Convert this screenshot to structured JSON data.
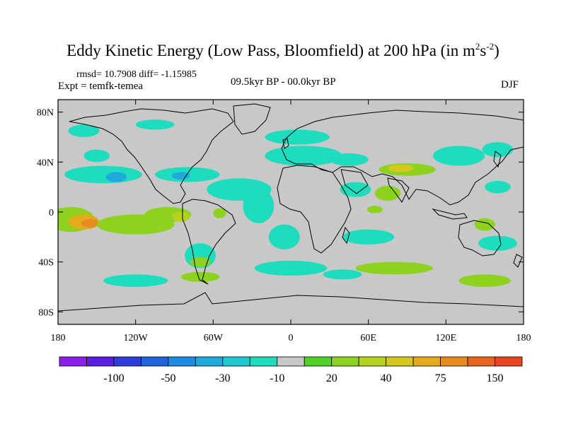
{
  "title": {
    "main": "Eddy Kinetic Energy (Low Pass, Bloomfield) at 200 hPa (in m",
    "sup1": "2",
    "mid": "s",
    "sup2": "-2",
    "end": ")"
  },
  "stats": "rmsd= 10.7908 diff= -1.15985",
  "experiment": "Expt = temfk-temea",
  "period": "09.5kyr BP - 00.0kyr BP",
  "season": "DJF",
  "map": {
    "lon_range": [
      -180,
      180
    ],
    "lat_range": [
      -90,
      90
    ],
    "lat_ticks": [
      {
        "lat": 80,
        "label": "80N"
      },
      {
        "lat": 40,
        "label": "40N"
      },
      {
        "lat": 0,
        "label": "0"
      },
      {
        "lat": -40,
        "label": "40S"
      },
      {
        "lat": -80,
        "label": "80S"
      }
    ],
    "lon_ticks": [
      {
        "lon": -180,
        "label": "180"
      },
      {
        "lon": -120,
        "label": "120W"
      },
      {
        "lon": -60,
        "label": "60W"
      },
      {
        "lon": 0,
        "label": "0"
      },
      {
        "lon": 60,
        "label": "60E"
      },
      {
        "lon": 120,
        "label": "120E"
      },
      {
        "lon": 180,
        "label": "180"
      }
    ],
    "background_color": "#c8c8c8"
  },
  "colorbar": {
    "colors": [
      "#8c1eea",
      "#5a1ee0",
      "#2e3cdc",
      "#1e64dc",
      "#1e8ce6",
      "#1eaadc",
      "#1ec8d2",
      "#1edcbe",
      "#c8c8c8",
      "#50d228",
      "#8cd21e",
      "#b4d21e",
      "#d2c81e",
      "#e6aa1e",
      "#e68c1e",
      "#e6641e",
      "#e6461e"
    ],
    "labels": [
      {
        "after": 2,
        "text": "-100"
      },
      {
        "after": 4,
        "text": "-50"
      },
      {
        "after": 6,
        "text": "-30"
      },
      {
        "after": 8,
        "text": "-10"
      },
      {
        "after": 10,
        "text": "20"
      },
      {
        "after": 12,
        "text": "40"
      },
      {
        "after": 14,
        "text": "75"
      },
      {
        "after": 16,
        "text": "150"
      }
    ]
  },
  "anomalies": [
    {
      "lon": -170,
      "lat": -6,
      "rx": 18,
      "ry": 10,
      "level": 10
    },
    {
      "lon": -160,
      "lat": -8,
      "rx": 12,
      "ry": 6,
      "level": 13
    },
    {
      "lon": -155,
      "lat": -9,
      "rx": 7,
      "ry": 3.5,
      "level": 14
    },
    {
      "lon": -120,
      "lat": -10,
      "rx": 30,
      "ry": 8,
      "level": 10
    },
    {
      "lon": -95,
      "lat": -2,
      "rx": 18,
      "ry": 6,
      "level": 10
    },
    {
      "lon": -85,
      "lat": -4,
      "rx": 7,
      "ry": 4,
      "level": 11
    },
    {
      "lon": -55,
      "lat": -1,
      "rx": 5,
      "ry": 4,
      "level": 10
    },
    {
      "lon": -145,
      "lat": 30,
      "rx": 30,
      "ry": 7,
      "level": 7
    },
    {
      "lon": -135,
      "lat": 28,
      "rx": 8,
      "ry": 4,
      "level": 5
    },
    {
      "lon": -80,
      "lat": 30,
      "rx": 25,
      "ry": 6,
      "level": 7
    },
    {
      "lon": -85,
      "lat": 29,
      "rx": 7,
      "ry": 3,
      "level": 5
    },
    {
      "lon": -40,
      "lat": 18,
      "rx": 25,
      "ry": 9,
      "level": 7
    },
    {
      "lon": -25,
      "lat": 5,
      "rx": 12,
      "ry": 14,
      "level": 7
    },
    {
      "lon": -5,
      "lat": -20,
      "rx": 12,
      "ry": 10,
      "level": 7
    },
    {
      "lon": 0,
      "lat": -45,
      "rx": 28,
      "ry": 6,
      "level": 7
    },
    {
      "lon": -160,
      "lat": 65,
      "rx": 12,
      "ry": 5,
      "level": 7
    },
    {
      "lon": -150,
      "lat": 45,
      "rx": 10,
      "ry": 5,
      "level": 7
    },
    {
      "lon": -105,
      "lat": 70,
      "rx": 15,
      "ry": 4,
      "level": 7
    },
    {
      "lon": 10,
      "lat": 45,
      "rx": 30,
      "ry": 8,
      "level": 7
    },
    {
      "lon": 5,
      "lat": 60,
      "rx": 25,
      "ry": 6,
      "level": 7
    },
    {
      "lon": 45,
      "lat": 42,
      "rx": 15,
      "ry": 5,
      "level": 7
    },
    {
      "lon": 50,
      "lat": 18,
      "rx": 12,
      "ry": 6,
      "level": 7
    },
    {
      "lon": 90,
      "lat": 34,
      "rx": 22,
      "ry": 5,
      "level": 10
    },
    {
      "lon": 85,
      "lat": 35,
      "rx": 10,
      "ry": 3,
      "level": 12
    },
    {
      "lon": 75,
      "lat": 15,
      "rx": 10,
      "ry": 6,
      "level": 10
    },
    {
      "lon": 65,
      "lat": 2,
      "rx": 6,
      "ry": 3,
      "level": 10
    },
    {
      "lon": 60,
      "lat": -20,
      "rx": 20,
      "ry": 6,
      "level": 7
    },
    {
      "lon": 130,
      "lat": 45,
      "rx": 20,
      "ry": 8,
      "level": 7
    },
    {
      "lon": 160,
      "lat": 50,
      "rx": 12,
      "ry": 6,
      "level": 7
    },
    {
      "lon": 160,
      "lat": 20,
      "rx": 10,
      "ry": 5,
      "level": 7
    },
    {
      "lon": 160,
      "lat": -25,
      "rx": 15,
      "ry": 6,
      "level": 7
    },
    {
      "lon": 150,
      "lat": -10,
      "rx": 8,
      "ry": 5,
      "level": 10
    },
    {
      "lon": -70,
      "lat": -35,
      "rx": 12,
      "ry": 10,
      "level": 7
    },
    {
      "lon": -70,
      "lat": -40,
      "rx": 8,
      "ry": 4,
      "level": 10
    },
    {
      "lon": -120,
      "lat": -55,
      "rx": 25,
      "ry": 5,
      "level": 7
    },
    {
      "lon": -70,
      "lat": -52,
      "rx": 15,
      "ry": 4,
      "level": 10
    },
    {
      "lon": 80,
      "lat": -45,
      "rx": 30,
      "ry": 5,
      "level": 10
    },
    {
      "lon": 150,
      "lat": -55,
      "rx": 20,
      "ry": 5,
      "level": 10
    },
    {
      "lon": 40,
      "lat": -50,
      "rx": 15,
      "ry": 4,
      "level": 7
    }
  ]
}
